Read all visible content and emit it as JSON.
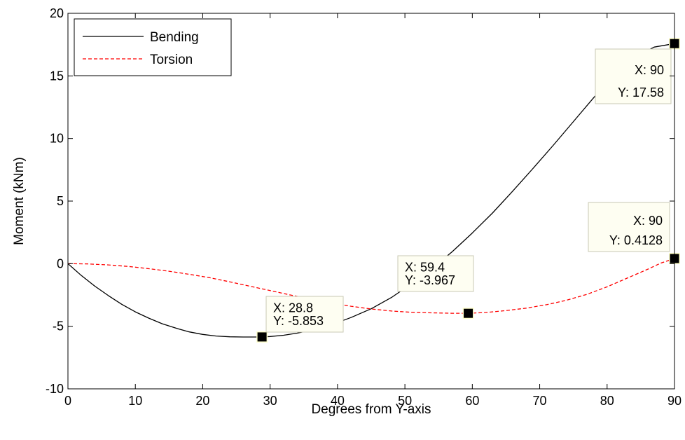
{
  "chart_data": {
    "type": "line",
    "title": "",
    "xlabel": "Degrees from Y-axis",
    "ylabel": "Moment (kNm)",
    "xlim": [
      0,
      90
    ],
    "ylim": [
      -10,
      20
    ],
    "xticks": [
      0,
      10,
      20,
      30,
      40,
      50,
      60,
      70,
      80,
      90
    ],
    "yticks": [
      -10,
      -5,
      0,
      5,
      10,
      15,
      20
    ],
    "grid": false,
    "legend_position": "top-left",
    "series": [
      {
        "name": "Bending",
        "color": "#000000",
        "line_style": "solid",
        "x": [
          0,
          2,
          4,
          6,
          8,
          10,
          12,
          14,
          16,
          18,
          20,
          22,
          24,
          26,
          28,
          28.8,
          30,
          32,
          34,
          36,
          38,
          40,
          42,
          45,
          48,
          51,
          54,
          57,
          60,
          63,
          66,
          69,
          72,
          75,
          78,
          81,
          84,
          87,
          90
        ],
        "y": [
          0,
          -0.95,
          -1.8,
          -2.55,
          -3.25,
          -3.85,
          -4.35,
          -4.8,
          -5.15,
          -5.45,
          -5.65,
          -5.78,
          -5.84,
          -5.86,
          -5.86,
          -5.853,
          -5.82,
          -5.72,
          -5.55,
          -5.32,
          -5.05,
          -4.7,
          -4.3,
          -3.6,
          -2.7,
          -1.6,
          -0.4,
          0.95,
          2.45,
          4.05,
          5.8,
          7.6,
          9.45,
          11.35,
          13.25,
          15.05,
          16.5,
          17.3,
          17.58
        ]
      },
      {
        "name": "Torsion",
        "color": "#ff0000",
        "line_style": "dashed",
        "x": [
          0,
          3,
          6,
          9,
          12,
          15,
          18,
          21,
          24,
          27,
          30,
          33,
          36,
          39,
          42,
          45,
          48,
          51,
          54,
          57,
          59.4,
          62,
          65,
          68,
          71,
          74,
          77,
          80,
          83,
          86,
          88,
          90
        ],
        "y": [
          0,
          -0.02,
          -0.1,
          -0.22,
          -0.4,
          -0.6,
          -0.85,
          -1.12,
          -1.45,
          -1.8,
          -2.15,
          -2.5,
          -2.82,
          -3.12,
          -3.4,
          -3.62,
          -3.78,
          -3.88,
          -3.93,
          -3.96,
          -3.967,
          -3.9,
          -3.75,
          -3.55,
          -3.28,
          -2.92,
          -2.45,
          -1.85,
          -1.15,
          -0.45,
          0.05,
          0.4128
        ]
      }
    ],
    "annotations": [
      {
        "x": 28.8,
        "y": -5.853,
        "x_text": "X: 28.8",
        "y_text": "Y: -5.853"
      },
      {
        "x": 59.4,
        "y": -3.967,
        "x_text": "X: 59.4",
        "y_text": "Y: -3.967"
      },
      {
        "x": 90,
        "y": 0.4128,
        "x_text": "X: 90",
        "y_text": "Y: 0.4128"
      },
      {
        "x": 90,
        "y": 17.58,
        "x_text": "X: 90",
        "y_text": "Y: 17.58"
      }
    ]
  }
}
